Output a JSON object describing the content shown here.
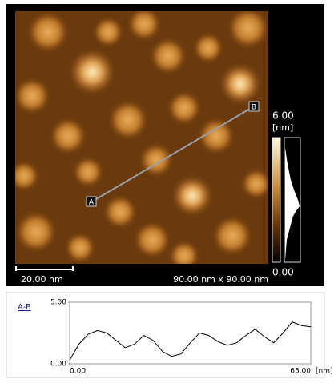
{
  "image": {
    "scale_bar": "20.00 nm",
    "size": "90.00 nm x 90.00 nm",
    "point_a": "A",
    "point_b": "B",
    "colorbar": {
      "max": "6.00",
      "unit": "[nm]",
      "min": "0.00"
    }
  },
  "chart_data": {
    "type": "line",
    "title": "A-B",
    "xlabel": "[nm]",
    "x": [
      0,
      2.5,
      5,
      7.5,
      10,
      12.5,
      15,
      17.5,
      20,
      22.5,
      25,
      27.5,
      30,
      32.5,
      35,
      37.5,
      40,
      42.5,
      45,
      47.5,
      50,
      52.5,
      55,
      57.5,
      60,
      62.5,
      65
    ],
    "values": [
      0.3,
      1.6,
      2.4,
      2.7,
      2.5,
      1.9,
      1.3,
      1.6,
      2.3,
      1.9,
      1.0,
      0.6,
      0.8,
      1.7,
      2.5,
      2.3,
      1.8,
      1.5,
      1.7,
      2.3,
      2.8,
      2.2,
      1.7,
      2.5,
      3.4,
      3.1,
      3.0
    ],
    "color": "#000000",
    "xlim": [
      0,
      65
    ],
    "ylim": [
      0,
      5
    ],
    "xticks": [
      {
        "value": 0,
        "label": "0.00"
      },
      {
        "value": 65,
        "label": "65.00"
      }
    ],
    "yticks": [
      {
        "value": 0,
        "label": "0.00"
      },
      {
        "value": 5,
        "label": "5.00"
      }
    ]
  }
}
